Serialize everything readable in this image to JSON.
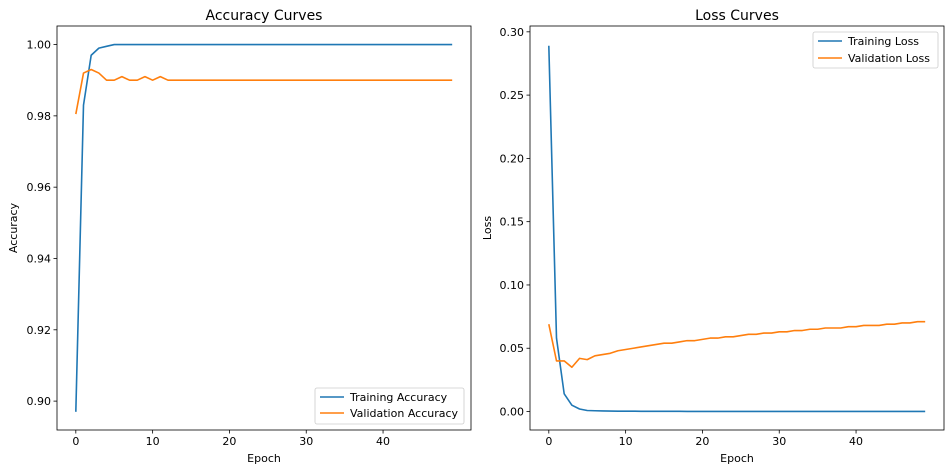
{
  "chart_data": [
    {
      "type": "line",
      "title": "Accuracy Curves",
      "xlabel": "Epoch",
      "ylabel": "Accuracy",
      "xlim": [
        -2.45,
        51.45
      ],
      "ylim": [
        0.8919,
        1.0052
      ],
      "xticks": [
        0,
        10,
        20,
        30,
        40
      ],
      "yticks": [
        0.9,
        0.92,
        0.94,
        0.96,
        0.98,
        1.0
      ],
      "ytick_labels": [
        "0.90",
        "0.92",
        "0.94",
        "0.96",
        "0.98",
        "1.00"
      ],
      "grid": false,
      "legend": "lower right",
      "series": [
        {
          "name": "Training Accuracy",
          "color": "#1f77b4",
          "x": [
            0,
            1,
            2,
            3,
            4,
            5,
            6,
            7,
            8,
            9,
            10,
            11,
            12,
            13,
            14,
            15,
            16,
            17,
            18,
            19,
            20,
            21,
            22,
            23,
            24,
            25,
            26,
            27,
            28,
            29,
            30,
            31,
            32,
            33,
            34,
            35,
            36,
            37,
            38,
            39,
            40,
            41,
            42,
            43,
            44,
            45,
            46,
            47,
            48,
            49
          ],
          "values": [
            0.897,
            0.983,
            0.997,
            0.999,
            0.9995,
            1.0,
            1.0,
            1.0,
            1.0,
            1.0,
            1.0,
            1.0,
            1.0,
            1.0,
            1.0,
            1.0,
            1.0,
            1.0,
            1.0,
            1.0,
            1.0,
            1.0,
            1.0,
            1.0,
            1.0,
            1.0,
            1.0,
            1.0,
            1.0,
            1.0,
            1.0,
            1.0,
            1.0,
            1.0,
            1.0,
            1.0,
            1.0,
            1.0,
            1.0,
            1.0,
            1.0,
            1.0,
            1.0,
            1.0,
            1.0,
            1.0,
            1.0,
            1.0,
            1.0,
            1.0
          ]
        },
        {
          "name": "Validation Accuracy",
          "color": "#ff7f0e",
          "x": [
            0,
            1,
            2,
            3,
            4,
            5,
            6,
            7,
            8,
            9,
            10,
            11,
            12,
            13,
            14,
            15,
            16,
            17,
            18,
            19,
            20,
            21,
            22,
            23,
            24,
            25,
            26,
            27,
            28,
            29,
            30,
            31,
            32,
            33,
            34,
            35,
            36,
            37,
            38,
            39,
            40,
            41,
            42,
            43,
            44,
            45,
            46,
            47,
            48,
            49
          ],
          "values": [
            0.9805,
            0.992,
            0.993,
            0.992,
            0.99,
            0.99,
            0.991,
            0.99,
            0.99,
            0.991,
            0.99,
            0.991,
            0.99,
            0.99,
            0.99,
            0.99,
            0.99,
            0.99,
            0.99,
            0.99,
            0.99,
            0.99,
            0.99,
            0.99,
            0.99,
            0.99,
            0.99,
            0.99,
            0.99,
            0.99,
            0.99,
            0.99,
            0.99,
            0.99,
            0.99,
            0.99,
            0.99,
            0.99,
            0.99,
            0.99,
            0.99,
            0.99,
            0.99,
            0.99,
            0.99,
            0.99,
            0.99,
            0.99,
            0.99,
            0.99
          ]
        }
      ]
    },
    {
      "type": "line",
      "title": "Loss Curves",
      "xlabel": "Epoch",
      "ylabel": "Loss",
      "xlim": [
        -2.45,
        51.45
      ],
      "ylim": [
        -0.0146,
        0.3046
      ],
      "xticks": [
        0,
        10,
        20,
        30,
        40
      ],
      "yticks": [
        0.0,
        0.05,
        0.1,
        0.15,
        0.2,
        0.25,
        0.3
      ],
      "ytick_labels": [
        "0.00",
        "0.05",
        "0.10",
        "0.15",
        "0.20",
        "0.25",
        "0.30"
      ],
      "grid": false,
      "legend": "upper right",
      "series": [
        {
          "name": "Training Loss",
          "color": "#1f77b4",
          "x": [
            0,
            1,
            2,
            3,
            4,
            5,
            6,
            7,
            8,
            9,
            10,
            11,
            12,
            13,
            14,
            15,
            16,
            17,
            18,
            19,
            20,
            21,
            22,
            23,
            24,
            25,
            26,
            27,
            28,
            29,
            30,
            31,
            32,
            33,
            34,
            35,
            36,
            37,
            38,
            39,
            40,
            41,
            42,
            43,
            44,
            45,
            46,
            47,
            48,
            49
          ],
          "values": [
            0.289,
            0.058,
            0.014,
            0.005,
            0.002,
            0.0008,
            0.0006,
            0.0005,
            0.0004,
            0.0003,
            0.0003,
            0.0003,
            0.0002,
            0.0002,
            0.0002,
            0.0002,
            0.0002,
            0.0002,
            0.0001,
            0.0001,
            0.0001,
            0.0001,
            0.0001,
            0.0001,
            0.0001,
            0.0001,
            0.0001,
            0.0001,
            0.0001,
            0.0001,
            0.0001,
            0.0001,
            0.0001,
            0.0001,
            0.0001,
            0.0001,
            0.0001,
            0.0001,
            0.0001,
            0.0001,
            0.0001,
            0.0001,
            0.0001,
            0.0001,
            0.0001,
            0.0001,
            0.0001,
            0.0001,
            0.0001,
            0.0001
          ]
        },
        {
          "name": "Validation Loss",
          "color": "#ff7f0e",
          "x": [
            0,
            1,
            2,
            3,
            4,
            5,
            6,
            7,
            8,
            9,
            10,
            11,
            12,
            13,
            14,
            15,
            16,
            17,
            18,
            19,
            20,
            21,
            22,
            23,
            24,
            25,
            26,
            27,
            28,
            29,
            30,
            31,
            32,
            33,
            34,
            35,
            36,
            37,
            38,
            39,
            40,
            41,
            42,
            43,
            44,
            45,
            46,
            47,
            48,
            49
          ],
          "values": [
            0.069,
            0.04,
            0.04,
            0.035,
            0.042,
            0.041,
            0.044,
            0.045,
            0.046,
            0.048,
            0.049,
            0.05,
            0.051,
            0.052,
            0.053,
            0.054,
            0.054,
            0.055,
            0.056,
            0.056,
            0.057,
            0.058,
            0.058,
            0.059,
            0.059,
            0.06,
            0.061,
            0.061,
            0.062,
            0.062,
            0.063,
            0.063,
            0.064,
            0.064,
            0.065,
            0.065,
            0.066,
            0.066,
            0.066,
            0.067,
            0.067,
            0.068,
            0.068,
            0.068,
            0.069,
            0.069,
            0.07,
            0.07,
            0.071,
            0.071
          ]
        }
      ]
    }
  ]
}
